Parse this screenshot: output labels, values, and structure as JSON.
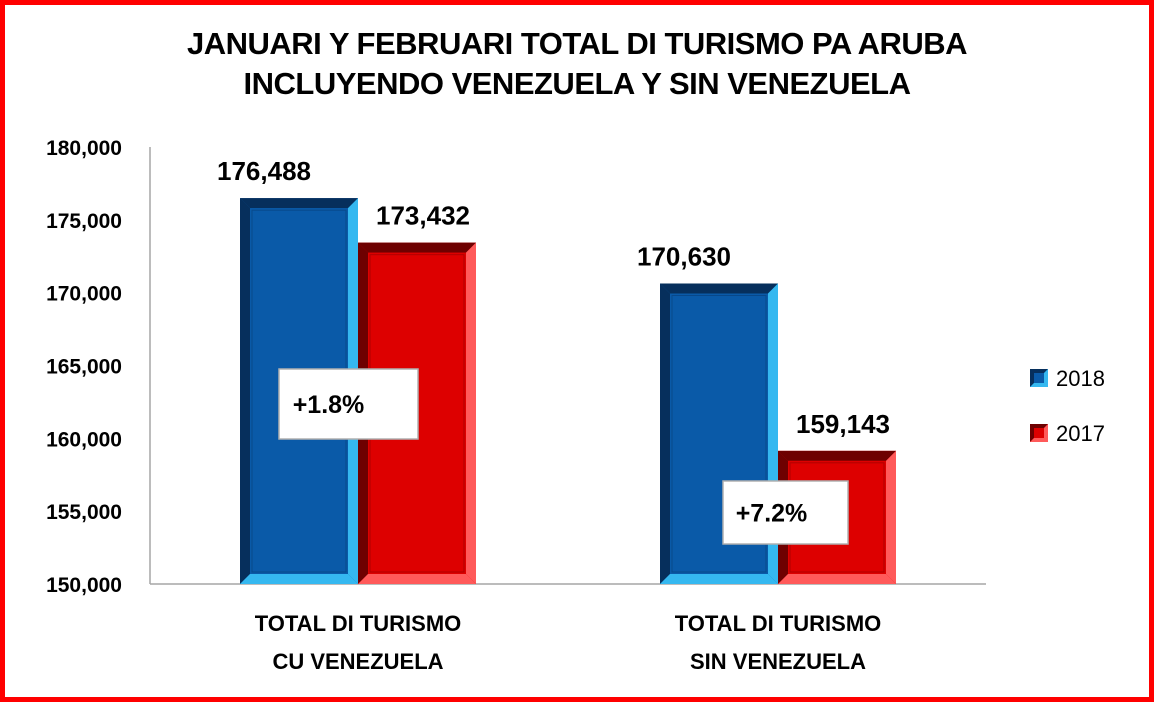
{
  "chart_data": {
    "type": "bar",
    "title_lines": [
      "JANUARI Y FEBRUARI TOTAL DI TURISMO PA ARUBA",
      "INCLUYENDO VENEZUELA Y SIN VENEZUELA"
    ],
    "categories": [
      [
        "TOTAL DI TURISMO",
        "CU VENEZUELA"
      ],
      [
        "TOTAL DI TURISMO",
        "SIN VENEZUELA"
      ]
    ],
    "series": [
      {
        "name": "2018",
        "values": [
          176488,
          170630
        ],
        "color": "#0a5aa8",
        "labels": [
          "176,488",
          "170,630"
        ]
      },
      {
        "name": "2017",
        "values": [
          173432,
          159143
        ],
        "color": "#dd0000",
        "labels": [
          "173,432",
          "159,143"
        ]
      }
    ],
    "annotations": [
      "+1.8%",
      "+7.2%"
    ],
    "ylim": [
      150000,
      180000
    ],
    "yticks": [
      150000,
      155000,
      160000,
      165000,
      170000,
      175000,
      180000
    ],
    "ytick_labels": [
      "150,000",
      "155,000",
      "160,000",
      "165,000",
      "170,000",
      "175,000",
      "180,000"
    ],
    "legend_position": "right",
    "grid": false,
    "frame_color": "#ff0000"
  }
}
